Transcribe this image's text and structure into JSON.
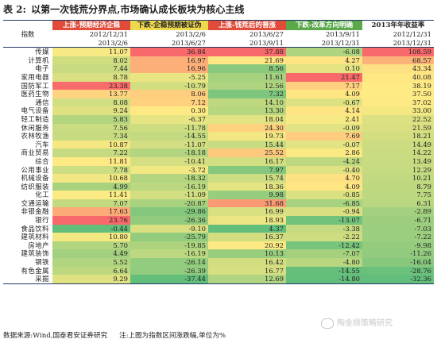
{
  "title": {
    "label": "表 2:",
    "text": "以第一次钱荒分界点,市场确认成长板块为核心主线"
  },
  "header": {
    "groups": [
      {
        "label": "上涨-预期经济企稳",
        "start": "2012/12/31",
        "end": "2013/2/6",
        "color": "#e04b3a"
      },
      {
        "label": "下跌-企稳预期被证伪",
        "start": "2013/2/6",
        "end": "2013/6/27",
        "color": "#f0d84d"
      },
      {
        "label": "上涨-钱荒后的普涨",
        "start": "2013/6/27",
        "end": "2013/9/11",
        "color": "#e04b3a"
      },
      {
        "label": "下跌-改革方向明确",
        "start": "2013/9/11",
        "end": "2013/12/31",
        "color": "#5aa84a"
      },
      {
        "label": "2013年年收益率",
        "start": "2012/12/31",
        "end": "2013/12/31",
        "color": "#ffffff"
      }
    ],
    "index_label": "指数"
  },
  "rows": [
    {
      "name": "传媒",
      "v": [
        "11.07",
        "36.84",
        "37.88",
        "-6.08",
        "108.59"
      ]
    },
    {
      "name": "计算机",
      "v": [
        "8.02",
        "16.97",
        "21.69",
        "4.27",
        "68.57"
      ]
    },
    {
      "name": "电子",
      "v": [
        "7.44",
        "16.96",
        "8.56",
        "0.10",
        "43.34"
      ]
    },
    {
      "name": "家用电器",
      "v": [
        "8.78",
        "-5.25",
        "11.61",
        "21.47",
        "40.08"
      ]
    },
    {
      "name": "国防军工",
      "v": [
        "23.38",
        "-10.79",
        "12.56",
        "7.17",
        "38.19"
      ]
    },
    {
      "name": "医药生物",
      "v": [
        "13.77",
        "8.06",
        "7.32",
        "4.09",
        "37.50"
      ]
    },
    {
      "name": "通信",
      "v": [
        "8.08",
        "7.12",
        "14.10",
        "-0.67",
        "37.02"
      ]
    },
    {
      "name": "电气设备",
      "v": [
        "9.24",
        "0.30",
        "13.30",
        "4.14",
        "33.00"
      ]
    },
    {
      "name": "轻工制造",
      "v": [
        "5.83",
        "-6.37",
        "18.04",
        "2.41",
        "22.52"
      ]
    },
    {
      "name": "休闲服务",
      "v": [
        "7.56",
        "-11.78",
        "24.30",
        "-0.09",
        "21.59"
      ]
    },
    {
      "name": "农林牧渔",
      "v": [
        "7.34",
        "-14.55",
        "19.73",
        "7.69",
        "18.21"
      ]
    },
    {
      "name": "汽车",
      "v": [
        "10.87",
        "-11.07",
        "15.44",
        "-0.07",
        "14.49"
      ]
    },
    {
      "name": "商业贸易",
      "v": [
        "7.22",
        "-18.18",
        "25.52",
        "2.86",
        "14.22"
      ]
    },
    {
      "name": "综合",
      "v": [
        "11.81",
        "-10.41",
        "16.17",
        "-4.24",
        "13.49"
      ]
    },
    {
      "name": "公用事业",
      "v": [
        "7.78",
        "-3.72",
        "7.97",
        "-0.40",
        "12.29"
      ]
    },
    {
      "name": "机械设备",
      "v": [
        "10.68",
        "-18.32",
        "15.74",
        "4.70",
        "10.21"
      ]
    },
    {
      "name": "纺织服装",
      "v": [
        "4.99",
        "-16.19",
        "18.36",
        "4.09",
        "8.79"
      ]
    },
    {
      "name": "化工",
      "v": [
        "11.41",
        "-11.09",
        "9.98",
        "-0.85",
        "7.75"
      ]
    },
    {
      "name": "交通运输",
      "v": [
        "7.07",
        "-20.87",
        "31.68",
        "-6.85",
        "6.31"
      ]
    },
    {
      "name": "非银金融",
      "v": [
        "17.63",
        "-29.86",
        "16.99",
        "-0.94",
        "-2.89"
      ]
    },
    {
      "name": "银行",
      "v": [
        "23.76",
        "-26.36",
        "18.93",
        "-13.07",
        "-6.71"
      ]
    },
    {
      "name": "食品饮料",
      "v": [
        "-0.44",
        "-9.10",
        "4.37",
        "-3.38",
        "-7.03"
      ]
    },
    {
      "name": "建筑材料",
      "v": [
        "10.80",
        "-25.79",
        "16.37",
        "-2.22",
        "-7.22"
      ]
    },
    {
      "name": "房地产",
      "v": [
        "5.70",
        "-19.85",
        "20.92",
        "-12.42",
        "-9.98"
      ]
    },
    {
      "name": "建筑装饰",
      "v": [
        "4.49",
        "-16.19",
        "10.13",
        "-7.07",
        "-11.26"
      ]
    },
    {
      "name": "钢铁",
      "v": [
        "5.52",
        "-26.14",
        "16.42",
        "-4.80",
        "-16.04"
      ]
    },
    {
      "name": "有色金属",
      "v": [
        "6.64",
        "-26.39",
        "16.77",
        "-14.55",
        "-28.76"
      ]
    },
    {
      "name": "采掘",
      "v": [
        "9.29",
        "-37.44",
        "12.69",
        "-14.80",
        "-32.36"
      ]
    }
  ],
  "colors": {
    "high": "#f8696b",
    "mid": "#ffeb84",
    "low": "#63be7b"
  },
  "footer": {
    "source": "数据来源:Wind,国泰君安证券研究",
    "note": "注:上图为指数区间涨跌幅,单位为%"
  },
  "watermark": "陶金顺策略研究"
}
